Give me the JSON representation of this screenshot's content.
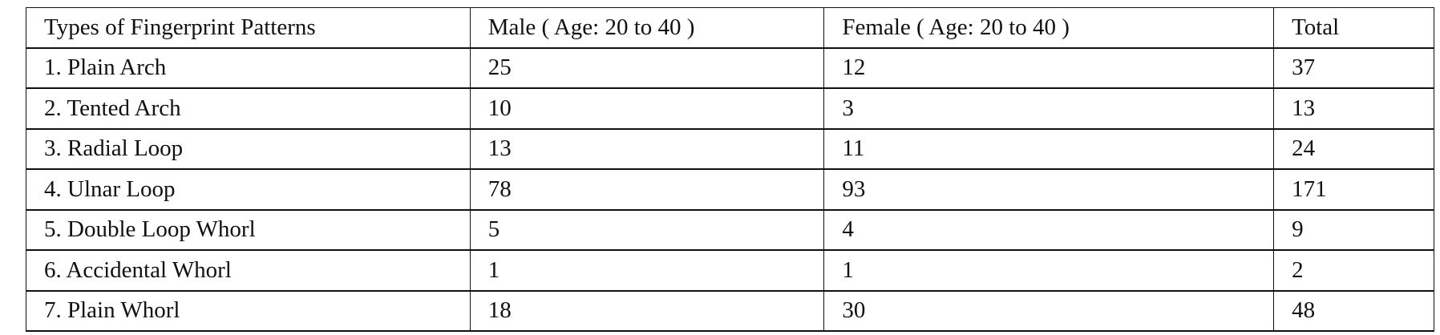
{
  "table": {
    "headers": [
      "Types of Fingerprint Patterns",
      "Male ( Age: 20 to 40 )",
      "Female ( Age: 20 to 40 )",
      "Total"
    ],
    "rows": [
      [
        "1. Plain Arch",
        "25",
        "12",
        "37"
      ],
      [
        "2. Tented Arch",
        "10",
        "3",
        "13"
      ],
      [
        "3. Radial Loop",
        "13",
        "11",
        "24"
      ],
      [
        "4. Ulnar Loop",
        "78",
        "93",
        "171"
      ],
      [
        "5. Double Loop Whorl",
        "5",
        "4",
        "9"
      ],
      [
        "6. Accidental Whorl",
        "1",
        "1",
        "2"
      ],
      [
        "7. Plain Whorl",
        "18",
        "30",
        "48"
      ]
    ]
  }
}
